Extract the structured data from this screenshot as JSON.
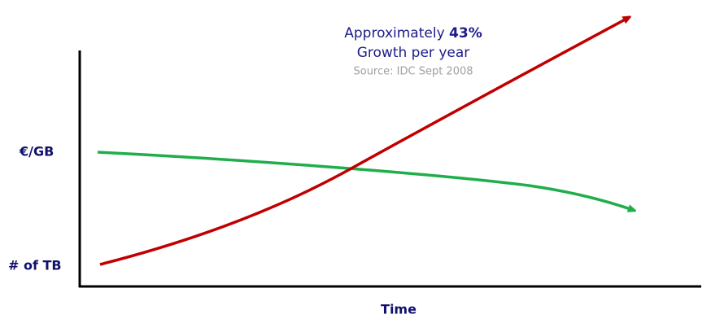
{
  "header": {
    "lead": "Approximately",
    "highlight": "43%",
    "subtitle": "Growth per year",
    "source": "Source: IDC Sept 2008"
  },
  "y_labels": [
    "€/GB",
    "# of TB"
  ],
  "x_label": "Time"
}
